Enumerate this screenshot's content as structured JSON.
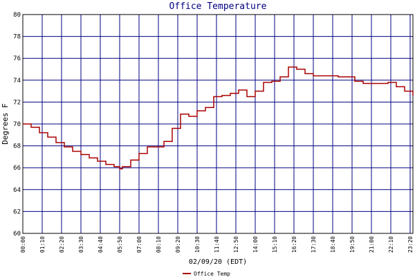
{
  "chart_data": {
    "type": "line",
    "title": "Office Temperature",
    "y_label": "Degrees F",
    "x_label": "02/09/20 (EDT)",
    "x": [
      0,
      30,
      60,
      90,
      120,
      150,
      180,
      210,
      240,
      270,
      300,
      330,
      350,
      360,
      390,
      420,
      450,
      480,
      510,
      540,
      570,
      600,
      630,
      660,
      690,
      720,
      750,
      780,
      810,
      840,
      870,
      900,
      930,
      960,
      990,
      1020,
      1050,
      1080,
      1110,
      1140,
      1170,
      1200,
      1230,
      1260,
      1290,
      1320,
      1350,
      1380,
      1410
    ],
    "series": [
      {
        "name": "Office Temp",
        "color": "#aa0000",
        "values": [
          70.0,
          69.7,
          69.2,
          68.8,
          68.3,
          67.9,
          67.5,
          67.2,
          66.9,
          66.6,
          66.3,
          66.1,
          65.9,
          66.1,
          66.7,
          67.3,
          67.9,
          67.9,
          68.4,
          69.6,
          70.9,
          70.7,
          71.2,
          71.5,
          72.5,
          72.6,
          72.8,
          73.1,
          72.5,
          73.0,
          73.8,
          73.9,
          74.3,
          75.2,
          75.0,
          74.6,
          74.4,
          74.4,
          74.4,
          74.3,
          74.3,
          73.9,
          73.7,
          73.7,
          73.7,
          73.8,
          73.4,
          73.0,
          72.6
        ]
      }
    ],
    "xlim": [
      0,
      1410
    ],
    "xticks": [
      {
        "value": 0,
        "label": "00:00"
      },
      {
        "value": 70,
        "label": "01:10"
      },
      {
        "value": 140,
        "label": "02:20"
      },
      {
        "value": 210,
        "label": "03:30"
      },
      {
        "value": 280,
        "label": "04:40"
      },
      {
        "value": 350,
        "label": "05:50"
      },
      {
        "value": 420,
        "label": "07:00"
      },
      {
        "value": 490,
        "label": "08:10"
      },
      {
        "value": 560,
        "label": "09:20"
      },
      {
        "value": 630,
        "label": "10:30"
      },
      {
        "value": 700,
        "label": "11:40"
      },
      {
        "value": 770,
        "label": "12:50"
      },
      {
        "value": 840,
        "label": "14:00"
      },
      {
        "value": 910,
        "label": "15:10"
      },
      {
        "value": 980,
        "label": "16:20"
      },
      {
        "value": 1050,
        "label": "17:30"
      },
      {
        "value": 1120,
        "label": "18:40"
      },
      {
        "value": 1190,
        "label": "19:50"
      },
      {
        "value": 1260,
        "label": "21:00"
      },
      {
        "value": 1330,
        "label": "22:10"
      },
      {
        "value": 1400,
        "label": "23:20"
      }
    ],
    "ylim": [
      60,
      80
    ],
    "yticks": [
      60,
      62,
      64,
      66,
      68,
      70,
      72,
      74,
      76,
      78,
      80
    ],
    "grid": true
  }
}
